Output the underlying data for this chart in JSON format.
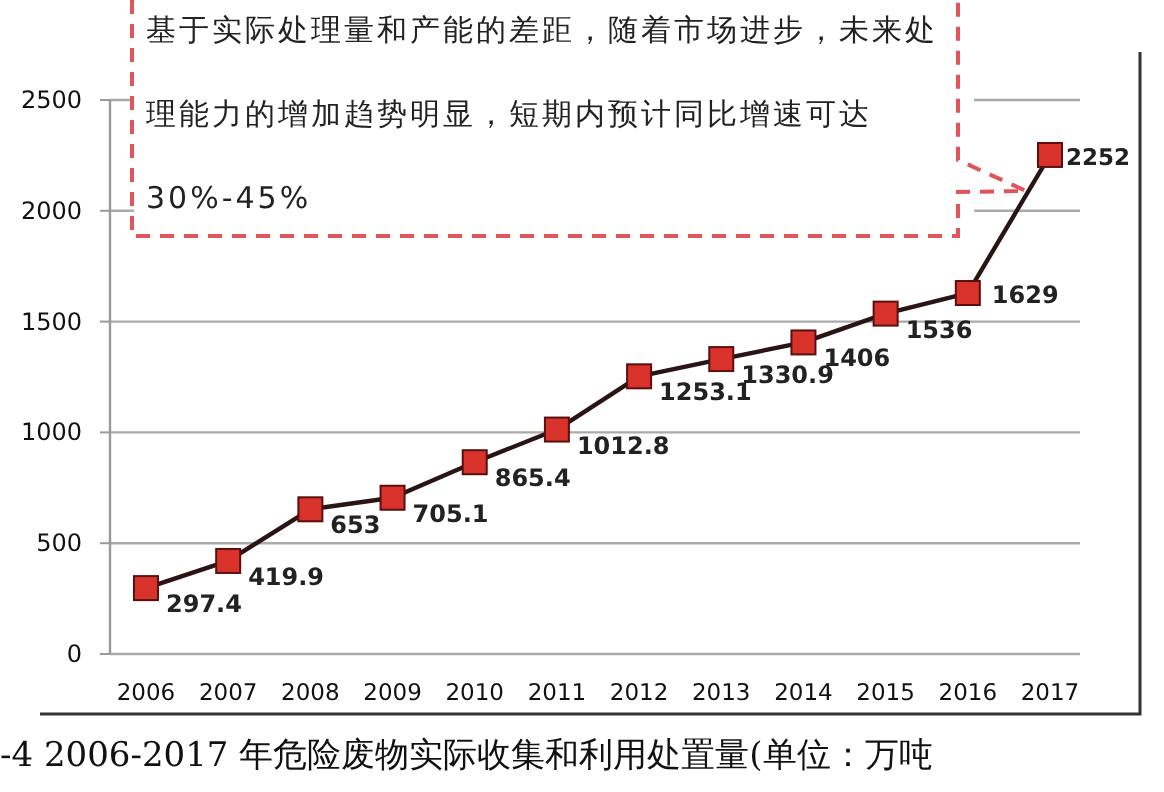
{
  "chart_data": {
    "type": "line",
    "title": "-4 2006-2017 年危险废物实际收集和利用处置量(单位：万吨",
    "categories": [
      "2006",
      "2007",
      "2008",
      "2009",
      "2010",
      "2011",
      "2012",
      "2013",
      "2014",
      "2015",
      "2016",
      "2017"
    ],
    "series": [
      {
        "color": "#2a1414",
        "colors": [
          "#d8322a",
          "#d8322a",
          "#d8322a",
          "#d8322a",
          "#d8322a",
          "#d8322a",
          "#d8322a",
          "#d8322a",
          "#d8322a",
          "#d8322a",
          "#d8322a",
          "#d8322a"
        ],
        "values": [
          297.4,
          419.9,
          653,
          705.1,
          865.4,
          1012.8,
          1253.1,
          1330.9,
          1406,
          1536,
          1629,
          2252
        ]
      }
    ],
    "annotations": [
      "基于实际处理量和产能的差距，随着市场进步，未来处理能力的增加趋势明显，短期内预计同比增速可达30%-45%"
    ],
    "ylim": [
      0,
      2500
    ],
    "yticks": [
      0,
      500,
      1000,
      1500,
      2000,
      2500
    ],
    "grid": "y",
    "marker": "square",
    "line_style": "solid",
    "data_labels": true
  }
}
